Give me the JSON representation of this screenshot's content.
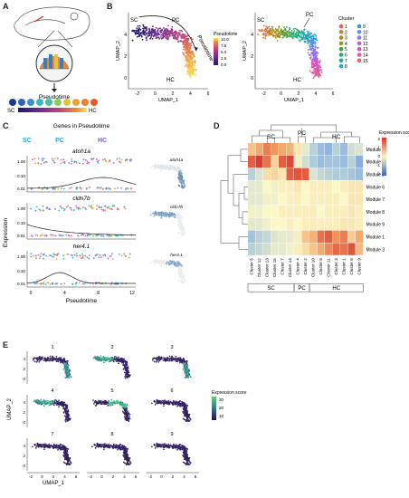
{
  "panel_labels": {
    "a": "A",
    "b": "B",
    "c": "C",
    "d": "D",
    "e": "E"
  },
  "panel_a": {
    "arrow_label": "Pseudotime",
    "sc_label": "SC",
    "hc_label": "HC"
  },
  "colors": {
    "sc": "#2aa6d8",
    "pc": "#3a9de0",
    "hc": "#7b5fb8",
    "umap_low": "#f2f2f2",
    "umap_high": "#1a5aa0"
  },
  "chart_data": [
    {
      "id": "B-left",
      "type": "scatter",
      "title": "",
      "xlabel": "UMAP_1",
      "ylabel": "UMAP_2",
      "xlim": [
        -3,
        6
      ],
      "ylim": [
        -1,
        6
      ],
      "x_ticks": [
        "-2",
        "0",
        "2",
        "4",
        "6"
      ],
      "y_ticks": [
        "0",
        "2",
        "4"
      ],
      "annotations": [
        "SC",
        "PC",
        "HC",
        "Pseudotime"
      ],
      "legend": {
        "title": "Pseudotime",
        "ticks": [
          "10.0",
          "7.5",
          "5.0",
          "2.5",
          "0.0"
        ],
        "position": "right"
      },
      "colorscale": [
        "#1a1a6e",
        "#6a2c91",
        "#c2417a",
        "#f08a3b",
        "#f7e44a"
      ]
    },
    {
      "id": "B-right",
      "type": "scatter",
      "title": "",
      "xlabel": "UMAP_1",
      "ylabel": "UMAP_2",
      "xlim": [
        -3,
        6
      ],
      "ylim": [
        -1,
        6
      ],
      "x_ticks": [
        "-2",
        "0",
        "2",
        "4",
        "6"
      ],
      "y_ticks": [
        "0",
        "2",
        "4"
      ],
      "annotations": [
        "SC",
        "PC",
        "HC"
      ],
      "legend": {
        "title": "Cluster",
        "position": "right",
        "entries": [
          {
            "name": "1",
            "color": "#e9604f"
          },
          {
            "name": "2",
            "color": "#d97a2a"
          },
          {
            "name": "3",
            "color": "#b58b1a"
          },
          {
            "name": "4",
            "color": "#8a9a1a"
          },
          {
            "name": "5",
            "color": "#3fa43a"
          },
          {
            "name": "6",
            "color": "#2aab6e"
          },
          {
            "name": "7",
            "color": "#1fae9c"
          },
          {
            "name": "8",
            "color": "#22a9c4"
          },
          {
            "name": "9",
            "color": "#2b9ddf"
          },
          {
            "name": "10",
            "color": "#5b8ff0"
          },
          {
            "name": "11",
            "color": "#8b78ee"
          },
          {
            "name": "12",
            "color": "#b262e0"
          },
          {
            "name": "13",
            "color": "#d553c2"
          },
          {
            "name": "14",
            "color": "#e7559a"
          },
          {
            "name": "15",
            "color": "#f05b73"
          }
        ]
      }
    },
    {
      "id": "C",
      "type": "scatter",
      "title": "Genes in Pseudotime",
      "xlabel": "Pseudotime",
      "ylabel": "Expression",
      "header_labels": [
        "SC",
        "PC",
        "HC"
      ],
      "x_ticks": [
        "0",
        "4",
        "8",
        "12"
      ],
      "y_ticks": [
        "1.00",
        "0.10",
        "0.01"
      ],
      "genes": [
        {
          "name": "atoh1a",
          "curve_peak_x": 8.5,
          "curve_shape": "rise"
        },
        {
          "name": "cldn7b",
          "curve_peak_x": 0,
          "curve_shape": "decay"
        },
        {
          "name": "her4.1",
          "curve_peak_x": 3.5,
          "curve_shape": "bump"
        }
      ]
    },
    {
      "id": "D",
      "type": "heatmap",
      "legend": {
        "title": "Expression score",
        "ticks": [
          "2",
          "1",
          "0",
          "-1",
          "-2"
        ],
        "position": "right"
      },
      "rows": [
        "Module 2",
        "Module 4",
        "Module 5",
        "Module 6",
        "Module 7",
        "Module 8",
        "Module 9",
        "Module 1",
        "Module 3"
      ],
      "columns": [
        "Cluster 5",
        "Cluster 12",
        "Cluster 13",
        "Cluster 15",
        "Cluster 7",
        "Cluster 14",
        "Cluster 4",
        "Cluster 2",
        "Cluster 10",
        "Cluster 8",
        "Cluster 11",
        "Cluster 3",
        "Cluster 1",
        "Cluster 6",
        "Cluster 9"
      ],
      "column_groups": [
        {
          "name": "SC",
          "span": 6
        },
        {
          "name": "PC",
          "span": 2
        },
        {
          "name": "HC",
          "span": 7
        }
      ],
      "top_group_labels": [
        "SC",
        "PC",
        "HC"
      ],
      "values": [
        [
          0.6,
          0.9,
          1.3,
          1.1,
          0.9,
          0.8,
          0.2,
          -0.2,
          -0.6,
          -0.9,
          -1.0,
          -0.6,
          -0.9,
          -0.4,
          -0.3
        ],
        [
          1.6,
          1.9,
          1.4,
          0.4,
          1.6,
          1.8,
          -0.1,
          -0.4,
          -0.7,
          -0.9,
          -0.8,
          -0.8,
          -0.9,
          -0.6,
          -1.1
        ],
        [
          -0.6,
          -0.3,
          0.3,
          0.4,
          0.2,
          1.6,
          1.7,
          1.6,
          -0.3,
          -0.5,
          -0.6,
          -0.7,
          -0.7,
          -0.8,
          -0.9
        ],
        [
          -0.2,
          -0.2,
          0.0,
          -0.1,
          0.1,
          0.1,
          0.2,
          0.0,
          0.1,
          0.1,
          0.1,
          0.0,
          0.1,
          0.2,
          0.2
        ],
        [
          -0.2,
          -0.2,
          -0.1,
          -0.1,
          0.0,
          0.1,
          0.1,
          0.0,
          0.1,
          0.1,
          0.1,
          0.1,
          0.0,
          0.2,
          0.2
        ],
        [
          -0.1,
          -0.1,
          0.0,
          0.0,
          0.1,
          0.1,
          0.1,
          0.1,
          0.1,
          0.0,
          0.1,
          0.1,
          0.1,
          0.2,
          0.1
        ],
        [
          -0.2,
          -0.2,
          -0.1,
          0.0,
          0.0,
          0.1,
          0.0,
          0.1,
          0.1,
          0.1,
          0.1,
          0.1,
          0.2,
          0.2,
          0.1
        ],
        [
          -0.8,
          -0.6,
          -0.5,
          -0.3,
          -0.2,
          -0.2,
          0.1,
          0.6,
          0.8,
          1.4,
          1.6,
          1.1,
          1.3,
          0.5,
          0.9
        ],
        [
          -0.6,
          -0.5,
          -0.4,
          -0.2,
          -0.2,
          -0.1,
          0.1,
          0.3,
          0.6,
          0.9,
          1.2,
          1.5,
          1.4,
          1.7,
          0.7
        ]
      ]
    },
    {
      "id": "E",
      "type": "scatter",
      "xlabel": "UMAP_1",
      "ylabel": "UMAP_2",
      "x_ticks": [
        "-2",
        "0",
        "2",
        "4",
        "6"
      ],
      "y_ticks": [
        "0",
        "2",
        "4"
      ],
      "legend": {
        "title": "Expression score",
        "ticks": [
          "30",
          "20",
          "10"
        ],
        "position": "right"
      },
      "modules": [
        {
          "name": "1",
          "high_region": "lower-right"
        },
        {
          "name": "2",
          "high_region": "upper-left"
        },
        {
          "name": "3",
          "high_region": "lower-right"
        },
        {
          "name": "4",
          "high_region": "upper-left"
        },
        {
          "name": "5",
          "high_region": "center"
        },
        {
          "name": "6",
          "high_region": "none"
        },
        {
          "name": "7",
          "high_region": "none"
        },
        {
          "name": "8",
          "high_region": "none"
        },
        {
          "name": "9",
          "high_region": "none"
        }
      ]
    }
  ]
}
